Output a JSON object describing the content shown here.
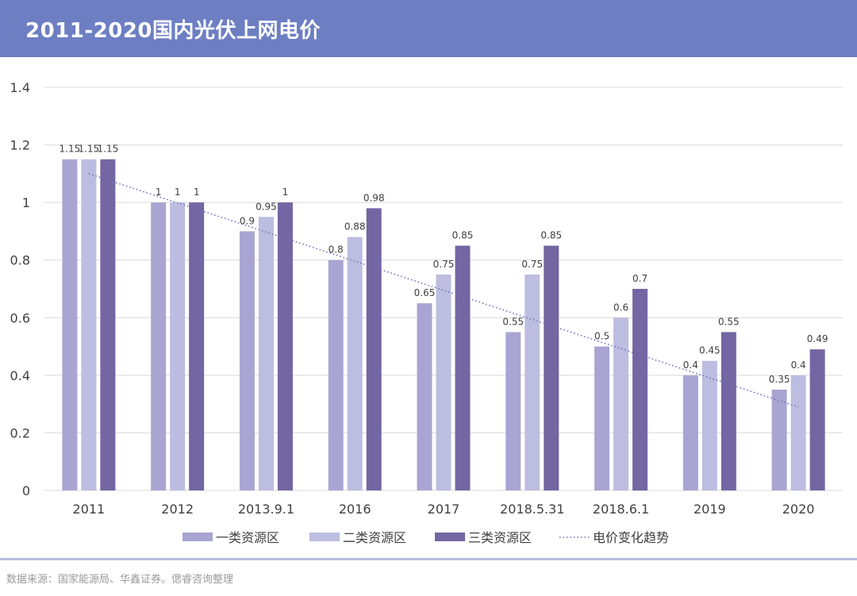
{
  "header": {
    "title": "2011-2020国内光伏上网电价"
  },
  "footer": {
    "source": "数据来源：国家能源局、华鑫证券。偲睿咨询整理"
  },
  "colors": {
    "header_bg": "#6d7ec3",
    "series1": "#a9a5d2",
    "series2": "#bcbde0",
    "series3": "#7465a3",
    "trend": "#6d6fb8",
    "grid": "#d9d9d9"
  },
  "chart_data": {
    "type": "bar",
    "title": "",
    "xlabel": "",
    "ylabel": "",
    "ylim": [
      0,
      1.4
    ],
    "yticks": [
      "0",
      "0.2",
      "0.4",
      "0.6",
      "0.8",
      "1",
      "1.2",
      "1.4"
    ],
    "grid": true,
    "legend_position": "bottom",
    "categories": [
      "2011",
      "2012",
      "2013.9.1",
      "2016",
      "2017",
      "2018.5.31",
      "2018.6.1",
      "2019",
      "2020"
    ],
    "series": [
      {
        "name": "一类资源区",
        "values": [
          1.15,
          1,
          0.9,
          0.8,
          0.65,
          0.55,
          0.5,
          0.4,
          0.35
        ]
      },
      {
        "name": "二类资源区",
        "values": [
          1.15,
          1,
          0.95,
          0.88,
          0.75,
          0.75,
          0.6,
          0.45,
          0.4
        ]
      },
      {
        "name": "三类资源区",
        "values": [
          1.15,
          1,
          1,
          0.98,
          0.85,
          0.85,
          0.7,
          0.55,
          0.49
        ]
      }
    ],
    "trendline": {
      "name": "电价变化趋势",
      "style": "dotted",
      "start": 1.1,
      "end": 0.29
    }
  }
}
